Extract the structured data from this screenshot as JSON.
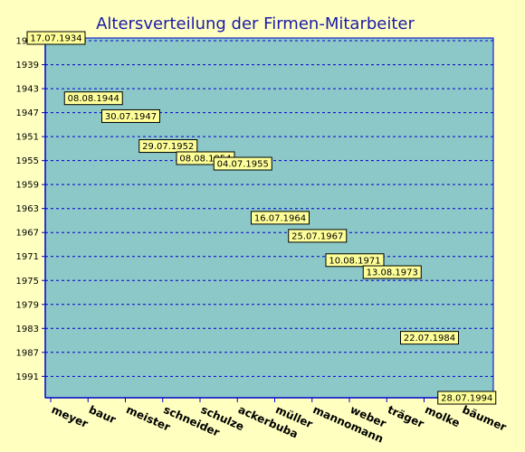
{
  "chart_data": {
    "type": "scatter",
    "title": "Altersverteilung der Firmen-Mitarbeiter",
    "xlabel": "",
    "ylabel": "",
    "categories": [
      "meyer",
      "baur",
      "meister",
      "schneider",
      "schulze",
      "ackerbuba",
      "müller",
      "mannomann",
      "weber",
      "träger",
      "molke",
      "bäumer"
    ],
    "values": [
      1934.54,
      1944.6,
      1947.58,
      1952.57,
      1954.6,
      1955.51,
      1964.54,
      1967.56,
      1971.61,
      1973.61,
      1984.56,
      1994.57
    ],
    "data_labels": [
      "17.07.1934",
      "08.08.1944",
      "30.07.1947",
      "29.07.1952",
      "08.08.1954",
      "04.07.1955",
      "16.07.1964",
      "25.07.1967",
      "10.08.1971",
      "13.08.1973",
      "22.07.1984",
      "28.07.1994"
    ],
    "yticks": [
      "1935",
      "1939",
      "1943",
      "1947",
      "1951",
      "1955",
      "1959",
      "1963",
      "1967",
      "1971",
      "1975",
      "1979",
      "1983",
      "1987",
      "1991"
    ],
    "ylim": [
      1934.54,
      1994.57
    ],
    "grid": true,
    "legend": "none",
    "colors": {
      "background": "#FFFFC0",
      "plot_background": "#8CC8C8",
      "grid": "#0000CC",
      "axis": "#0000CC",
      "title": "#1a1aa8",
      "label_fill": "#FFFF99",
      "label_border": "#000000"
    }
  }
}
